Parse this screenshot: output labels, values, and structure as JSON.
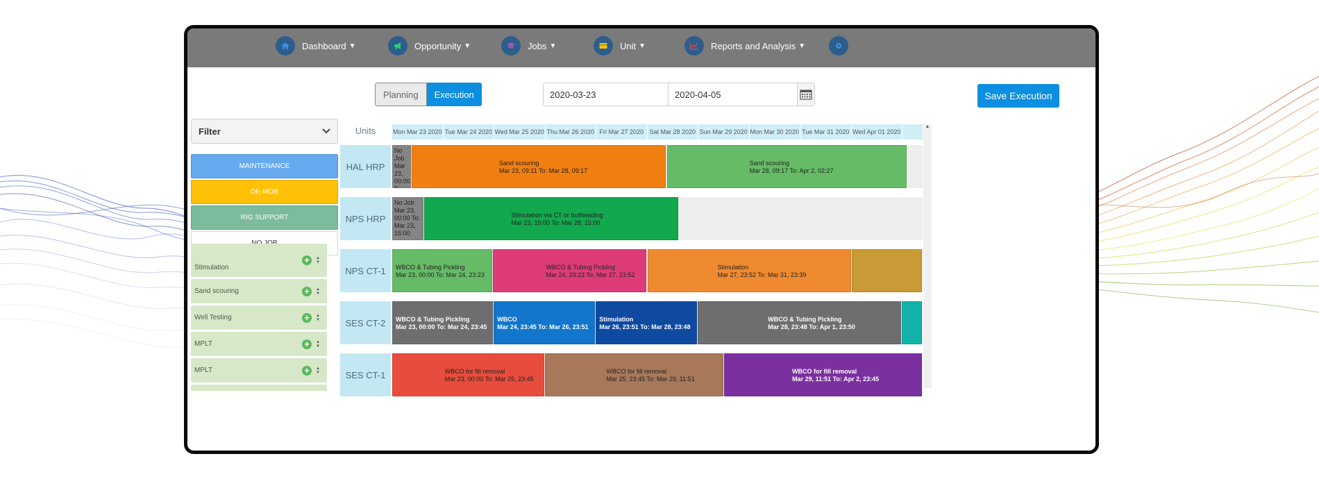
{
  "nav": [
    {
      "label": "Dashboard",
      "icon": "home-icon",
      "color": "#2d5d8c"
    },
    {
      "label": "Opportunity",
      "icon": "megaphone-icon",
      "color": "#2d5d8c"
    },
    {
      "label": "Jobs",
      "icon": "graduation-cap-icon",
      "color": "#2d5d8c"
    },
    {
      "label": "Unit",
      "icon": "unit-card-icon",
      "color": "#2d5d8c"
    },
    {
      "label": "Reports and Analysis",
      "icon": "line-chart-icon",
      "color": "#2d5d8c"
    },
    {
      "label": "",
      "icon": "settings-icon",
      "color": "#2d5d8c"
    }
  ],
  "toolbar": {
    "planning_label": "Planning",
    "execution_label": "Execution",
    "start_date": "2020-03-23",
    "end_date": "2020-04-05",
    "save_label": "Save Execution"
  },
  "filter": {
    "label": "Filter",
    "categories": [
      {
        "label": "MAINTENANCE",
        "color": "#66aaf0"
      },
      {
        "label": "DE-MOB",
        "color": "#ffc107"
      },
      {
        "label": "RIG SUPPORT",
        "color": "#7cbb9c"
      },
      {
        "label": "NO JOB",
        "color": "#ffffff"
      }
    ],
    "jobs": [
      "Stimulation",
      "Sand scouring",
      "Well Testing",
      "MPLT",
      "MPLT"
    ]
  },
  "grid": {
    "units_header": "Units",
    "dates": [
      "Mon Mar 23 2020",
      "Tue Mar 24 2020",
      "Wed Mar 25 2020",
      "Thu Mar 26 2020",
      "Fri Mar 27 2020",
      "Sat Mar 28 2020",
      "Sun Mar 29 2020",
      "Mon Mar 30 2020",
      "Tue Mar 31 2020",
      "Wed Apr 01 2020",
      "Thu"
    ],
    "units": [
      {
        "name": "HAL HRP",
        "bars": [
          {
            "title": "No Job",
            "time": "Mar 23, 00:00 To: Mar 23,",
            "color": "#8a8a8a",
            "start": 0.0,
            "end": 0.38
          },
          {
            "title": "Sand scouring",
            "time": "Mar 23, 09:11 To: Mar 28, 09:17",
            "color": "#f07f10",
            "start": 0.38,
            "end": 5.38
          },
          {
            "title": "Sand scouring",
            "time": "Mar 28, 09:17 To: Apr 2, 02:27",
            "color": "#66bb66",
            "start": 5.39,
            "end": 10.09
          }
        ]
      },
      {
        "name": "NPS HRP",
        "bars": [
          {
            "title": "No Job",
            "time": "Mar 23, 00:00 To: Mar 23, 15:00",
            "color": "#8a8a8a",
            "start": 0.0,
            "end": 0.62
          },
          {
            "title": "Stimulation via CT or bullheading",
            "time": "Mar 23, 15:00 To: Mar 28, 15:00",
            "color": "#12a84e",
            "start": 0.62,
            "end": 5.62
          }
        ]
      },
      {
        "name": "NPS CT-1",
        "bars": [
          {
            "title": "WBCO & Tubing Pickling",
            "time": "Mar 23, 00:00 To: Mar 24, 23:23",
            "color": "#66bb66",
            "start": 0.0,
            "end": 1.97
          },
          {
            "title": "WBCO & Tubing Pickling",
            "time": "Mar 24, 23:23 To: Mar 27, 23:52",
            "color": "#dd3c78",
            "start": 1.97,
            "end": 5.0
          },
          {
            "title": "Stimulation",
            "time": "Mar 27, 23:52 To: Mar 31, 23:39",
            "color": "#f08a30",
            "start": 5.0,
            "end": 9.0
          },
          {
            "title": "",
            "time": "",
            "color": "#c99a35",
            "start": 9.0,
            "end": 10.4
          }
        ]
      },
      {
        "name": "SES CT-2",
        "bars": [
          {
            "title": "WBCO & Tubing Pickling",
            "time": "Mar 23, 00:00 To: Mar 24, 23:45",
            "color": "#6e6e6e",
            "start": 0.0,
            "end": 1.99
          },
          {
            "title": "WBCO",
            "time": "Mar 24, 23:45 To: Mar 26, 23:51",
            "color": "#1176cc",
            "start": 1.99,
            "end": 3.99
          },
          {
            "title": "Stimulation",
            "time": "Mar 26, 23:51 To: Mar 28, 23:48",
            "color": "#0e4aa0",
            "start": 3.99,
            "end": 5.99
          },
          {
            "title": "WBCO & Tubing Pickling",
            "time": "Mar 28, 23:48 To: Apr 1, 23:50",
            "color": "#6e6e6e",
            "start": 5.99,
            "end": 9.99
          },
          {
            "title": "",
            "time": "",
            "color": "#12b2a8",
            "start": 9.99,
            "end": 10.4
          }
        ]
      },
      {
        "name": "SES CT-1",
        "bars": [
          {
            "title": "WBCO for fill removal",
            "time": "Mar 23, 00:00 To: Mar 25, 23:45",
            "color": "#e84c3c",
            "start": 0.0,
            "end": 2.99
          },
          {
            "title": "WBCO for fill removal",
            "time": "Mar 25, 23:45 To: Mar 29, 11:51",
            "color": "#a8785a",
            "start": 2.99,
            "end": 6.5
          },
          {
            "title": "WBCO for fill removal",
            "time": "Mar 29, 11:51 To: Apr 2, 23:45",
            "color": "#7b30a0",
            "start": 6.5,
            "end": 10.4
          }
        ]
      }
    ]
  }
}
